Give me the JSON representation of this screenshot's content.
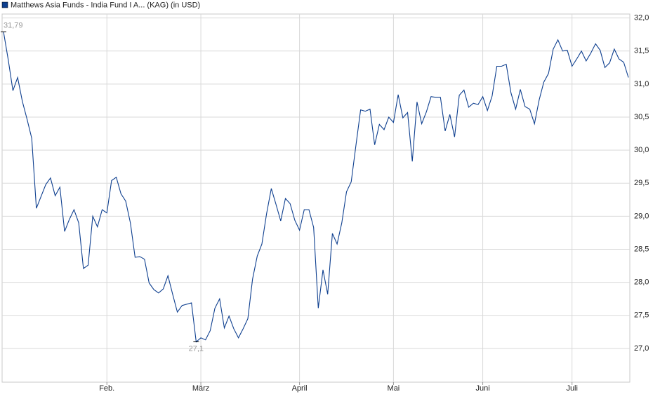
{
  "chart_data": {
    "type": "line",
    "categories": [
      null,
      null,
      null,
      null,
      null,
      null,
      null,
      null,
      null,
      null,
      null,
      null,
      null,
      null,
      null,
      null,
      null,
      null,
      null,
      null,
      null,
      null,
      "Feb.",
      null,
      null,
      null,
      null,
      null,
      null,
      null,
      null,
      null,
      null,
      null,
      null,
      null,
      null,
      null,
      null,
      null,
      null,
      null,
      "März",
      null,
      null,
      null,
      null,
      null,
      null,
      null,
      null,
      null,
      null,
      null,
      null,
      null,
      null,
      null,
      null,
      null,
      null,
      null,
      null,
      "April",
      null,
      null,
      null,
      null,
      null,
      null,
      null,
      null,
      null,
      null,
      null,
      null,
      null,
      null,
      null,
      null,
      null,
      null,
      null,
      "Mai",
      null,
      null,
      null,
      null,
      null,
      null,
      null,
      null,
      null,
      null,
      null,
      null,
      null,
      null,
      null,
      null,
      null,
      null,
      "Juni",
      null,
      null,
      null,
      null,
      null,
      null,
      null,
      null,
      null,
      null,
      null,
      null,
      null,
      null,
      null,
      null,
      null,
      null,
      "Juli",
      null,
      null,
      null,
      null,
      null,
      null,
      null,
      null,
      null,
      null,
      null,
      null
    ],
    "series": [
      {
        "name": "Matthews Asia Funds - India Fund I A... (KAG) (in USD)",
        "color": "#0e3f8f",
        "values": [
          31.79,
          31.37,
          30.9,
          31.1,
          30.74,
          30.47,
          30.18,
          29.12,
          29.3,
          29.48,
          29.58,
          29.31,
          29.44,
          28.77,
          28.95,
          29.1,
          28.9,
          28.21,
          28.26,
          29.0,
          28.84,
          29.1,
          29.05,
          29.54,
          29.59,
          29.34,
          29.23,
          28.9,
          28.38,
          28.39,
          28.35,
          27.99,
          27.89,
          27.84,
          27.9,
          28.1,
          27.82,
          27.55,
          27.65,
          27.67,
          27.69,
          27.1,
          27.16,
          27.13,
          27.27,
          27.61,
          27.75,
          27.31,
          27.49,
          27.3,
          27.16,
          27.3,
          27.45,
          28.05,
          28.4,
          28.58,
          29.04,
          29.42,
          29.18,
          28.93,
          29.27,
          29.19,
          28.94,
          28.79,
          29.1,
          29.1,
          28.83,
          27.61,
          28.19,
          27.82,
          28.74,
          28.58,
          28.9,
          29.37,
          29.52,
          30.07,
          30.61,
          30.59,
          30.62,
          30.08,
          30.39,
          30.31,
          30.5,
          30.42,
          30.84,
          30.49,
          30.57,
          29.83,
          30.73,
          30.4,
          30.58,
          30.81,
          30.8,
          30.8,
          30.29,
          30.54,
          30.2,
          30.83,
          30.91,
          30.65,
          30.71,
          30.69,
          30.81,
          30.6,
          30.82,
          31.27,
          31.27,
          31.3,
          30.87,
          30.62,
          30.92,
          30.66,
          30.62,
          30.4,
          30.76,
          31.03,
          31.16,
          31.53,
          31.67,
          31.5,
          31.51,
          31.27,
          31.38,
          31.5,
          31.35,
          31.47,
          31.61,
          31.51,
          31.25,
          31.32,
          31.53,
          31.38,
          31.33,
          31.1
        ],
        "value_labels": [
          "31,79",
          null,
          null,
          null,
          null,
          null,
          null,
          null,
          null,
          null,
          null,
          null,
          null,
          null,
          null,
          null,
          null,
          null,
          null,
          null,
          null,
          null,
          null,
          null,
          null,
          null,
          null,
          null,
          null,
          null,
          null,
          null,
          null,
          null,
          null,
          null,
          null,
          null,
          null,
          null,
          null,
          "27,1",
          null,
          null,
          null,
          null,
          null,
          null,
          null,
          null,
          null,
          null,
          null,
          null,
          null,
          null,
          null,
          null,
          null,
          null,
          null,
          null,
          null,
          null,
          null,
          null,
          null,
          null,
          null,
          null,
          null,
          null,
          null,
          null,
          null,
          null,
          null,
          null,
          null,
          null,
          null,
          null,
          null,
          null,
          null,
          null,
          null,
          null,
          null,
          null,
          null,
          null,
          null,
          null,
          null,
          null,
          null,
          null,
          null,
          null,
          null,
          null,
          null,
          null,
          null,
          null,
          null,
          null,
          null,
          null,
          null,
          null,
          null,
          null,
          null,
          null,
          null,
          null,
          null,
          null,
          null,
          null,
          null,
          null,
          null,
          null,
          null,
          null,
          null,
          null,
          null,
          null,
          null,
          null
        ]
      }
    ],
    "ylim": [
      26.49,
      32.06
    ],
    "yticks": [
      {
        "value": 27,
        "label": "27,0"
      },
      {
        "value": 27.5,
        "label": "27,5"
      },
      {
        "value": 28,
        "label": "28,0"
      },
      {
        "value": 28.5,
        "label": "28,5"
      },
      {
        "value": 29,
        "label": "29,0"
      },
      {
        "value": 29.5,
        "label": "29,5"
      },
      {
        "value": 30,
        "label": "30,0"
      },
      {
        "value": 30.5,
        "label": "30,5"
      },
      {
        "value": 31,
        "label": "31,0"
      },
      {
        "value": 31.5,
        "label": "31,5"
      },
      {
        "value": 32,
        "label": "32,0"
      }
    ],
    "grid": true,
    "legend": "top-left"
  }
}
